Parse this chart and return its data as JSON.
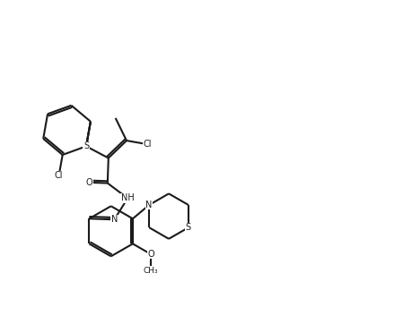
{
  "bg": "#ffffff",
  "lc": "#1a1a1a",
  "lw": 1.5,
  "figsize": [
    4.59,
    3.72
  ],
  "dpi": 100,
  "xlim": [
    0,
    10
  ],
  "ylim": [
    0,
    8.1
  ]
}
